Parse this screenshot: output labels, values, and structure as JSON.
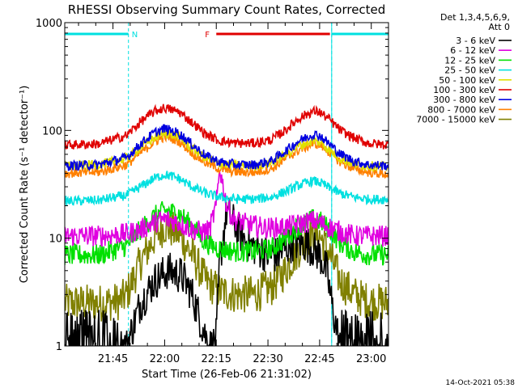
{
  "chart_data": {
    "type": "line",
    "title": "RHESSI Observing Summary Count Rates, Corrected",
    "ylabel": "Corrected Count Rate (s⁻¹ detector⁻¹)",
    "xlabel": "Start Time (26-Feb-06 21:31:02)",
    "yscale": "log",
    "ylim": [
      1,
      1000
    ],
    "xlim_minutes": [
      0,
      94
    ],
    "x_ticks": [
      {
        "label": "21:45",
        "min": 14
      },
      {
        "label": "22:00",
        "min": 29
      },
      {
        "label": "22:15",
        "min": 44
      },
      {
        "label": "22:30",
        "min": 59
      },
      {
        "label": "22:45",
        "min": 74
      },
      {
        "label": "23:00",
        "min": 89
      }
    ],
    "y_ticks": [
      {
        "label": "1",
        "value": 1
      },
      {
        "label": "10",
        "value": 10
      },
      {
        "label": "100",
        "value": 100
      },
      {
        "label": "1000",
        "value": 1000
      }
    ],
    "detector_info": [
      "Det 1,3,4,5,6,9,",
      "Att 0"
    ],
    "flags": [
      {
        "label": "N",
        "color": "#00e0e0",
        "start_min": 0,
        "end_min": 18.5
      },
      {
        "label": "",
        "color": "#00e0e0",
        "start_min": 77.5,
        "end_min": 94
      },
      {
        "label": "F",
        "color": "#e00000",
        "start_min": 44,
        "end_min": 77
      }
    ],
    "night_boundaries_min": [
      18.5,
      77.5
    ],
    "series": [
      {
        "name": "3 - 6 keV",
        "color": "#000000",
        "x": [
          0,
          10,
          16,
          18,
          22,
          26,
          30,
          34,
          37,
          40,
          42,
          43,
          44,
          45,
          47,
          49,
          51,
          53,
          56,
          59,
          62,
          64,
          66,
          68,
          70,
          72,
          74,
          76,
          78,
          80,
          82,
          94
        ],
        "y": [
          1,
          1,
          1,
          1,
          2.5,
          4,
          5,
          4.5,
          3,
          1.5,
          1,
          1,
          1.2,
          6,
          18,
          14,
          11,
          9,
          8,
          7,
          7,
          8,
          9,
          9,
          9,
          8,
          7,
          5,
          2,
          1,
          1,
          1
        ]
      },
      {
        "name": "6 - 12 keV",
        "color": "#e000e0",
        "x": [
          0,
          10,
          18,
          22,
          26,
          29,
          33,
          37,
          40,
          42,
          44,
          45,
          46,
          47,
          49,
          53,
          58,
          62,
          66,
          70,
          72,
          74,
          76,
          80,
          84,
          88,
          94
        ],
        "y": [
          10.5,
          10.5,
          11,
          12,
          14,
          15,
          14,
          12,
          11.5,
          12,
          20,
          45,
          30,
          20,
          15,
          13.5,
          12.5,
          12.5,
          13,
          14,
          14.5,
          14,
          13,
          11.5,
          10.5,
          10.5,
          10.5
        ]
      },
      {
        "name": "12 - 25 keV",
        "color": "#00e000",
        "x": [
          0,
          10,
          18,
          22,
          26,
          29,
          33,
          37,
          41,
          45,
          50,
          55,
          60,
          64,
          68,
          72,
          74,
          77,
          80,
          84,
          88,
          94
        ],
        "y": [
          7,
          7,
          8.5,
          12,
          16,
          18,
          17,
          13,
          9,
          8,
          7.5,
          7.5,
          8,
          10,
          13,
          15,
          14.5,
          12,
          9,
          7.5,
          7,
          7
        ]
      },
      {
        "name": "25 - 50 keV",
        "color": "#00e0e0",
        "x": [
          0,
          10,
          18,
          22,
          26,
          29,
          33,
          37,
          41,
          45,
          50,
          55,
          60,
          64,
          68,
          72,
          74,
          77,
          80,
          84,
          88,
          94
        ],
        "y": [
          22,
          22.5,
          25,
          30,
          36,
          39,
          36,
          30,
          26,
          24,
          23,
          23,
          24,
          27,
          31,
          34,
          33,
          29,
          26,
          24,
          23,
          23
        ]
      },
      {
        "name": "50 - 100 keV",
        "color": "#e0e000",
        "x": [
          0,
          10,
          18,
          22,
          26,
          29,
          33,
          37,
          41,
          45,
          50,
          55,
          60,
          64,
          68,
          72,
          74,
          77,
          80,
          84,
          88,
          94
        ],
        "y": [
          47,
          48,
          55,
          70,
          85,
          95,
          88,
          68,
          55,
          49,
          47,
          47,
          50,
          60,
          72,
          80,
          78,
          65,
          55,
          49,
          47,
          46
        ]
      },
      {
        "name": "100 - 300 keV",
        "color": "#e00000",
        "x": [
          0,
          10,
          18,
          22,
          26,
          29,
          33,
          37,
          41,
          45,
          50,
          55,
          60,
          64,
          68,
          72,
          74,
          77,
          80,
          84,
          88,
          94
        ],
        "y": [
          73,
          75,
          90,
          120,
          150,
          162,
          150,
          118,
          92,
          80,
          76,
          76,
          82,
          100,
          130,
          150,
          148,
          125,
          100,
          85,
          76,
          73
        ]
      },
      {
        "name": "300 - 800 keV",
        "color": "#0000e0",
        "x": [
          0,
          10,
          18,
          22,
          26,
          29,
          33,
          37,
          41,
          45,
          50,
          55,
          60,
          64,
          68,
          72,
          74,
          77,
          80,
          84,
          88,
          94
        ],
        "y": [
          47,
          48,
          56,
          75,
          95,
          104,
          95,
          74,
          58,
          51,
          48,
          48,
          52,
          64,
          80,
          92,
          90,
          74,
          60,
          52,
          48,
          47
        ]
      },
      {
        "name": "800 - 7000 keV",
        "color": "#ff8000",
        "x": [
          0,
          10,
          18,
          22,
          26,
          29,
          33,
          37,
          41,
          45,
          50,
          55,
          60,
          64,
          68,
          72,
          74,
          77,
          80,
          84,
          88,
          94
        ],
        "y": [
          40,
          41,
          48,
          62,
          78,
          88,
          80,
          62,
          50,
          44,
          41,
          41,
          44,
          54,
          66,
          75,
          74,
          62,
          51,
          44,
          41,
          39
        ]
      },
      {
        "name": "7000 - 15000 keV",
        "color": "#808000",
        "x": [
          0,
          10,
          16,
          18,
          22,
          26,
          29,
          33,
          37,
          41,
          45,
          50,
          55,
          60,
          64,
          68,
          72,
          74,
          77,
          80,
          84,
          88,
          94
        ],
        "y": [
          2.5,
          2.5,
          2.6,
          3,
          6,
          10,
          13,
          11,
          7,
          4,
          3.2,
          3,
          3,
          3.5,
          5,
          8,
          11,
          10.5,
          7,
          4,
          3,
          2.6,
          2.5
        ]
      }
    ]
  },
  "footer_timestamp": "14-Oct-2021 05:38"
}
